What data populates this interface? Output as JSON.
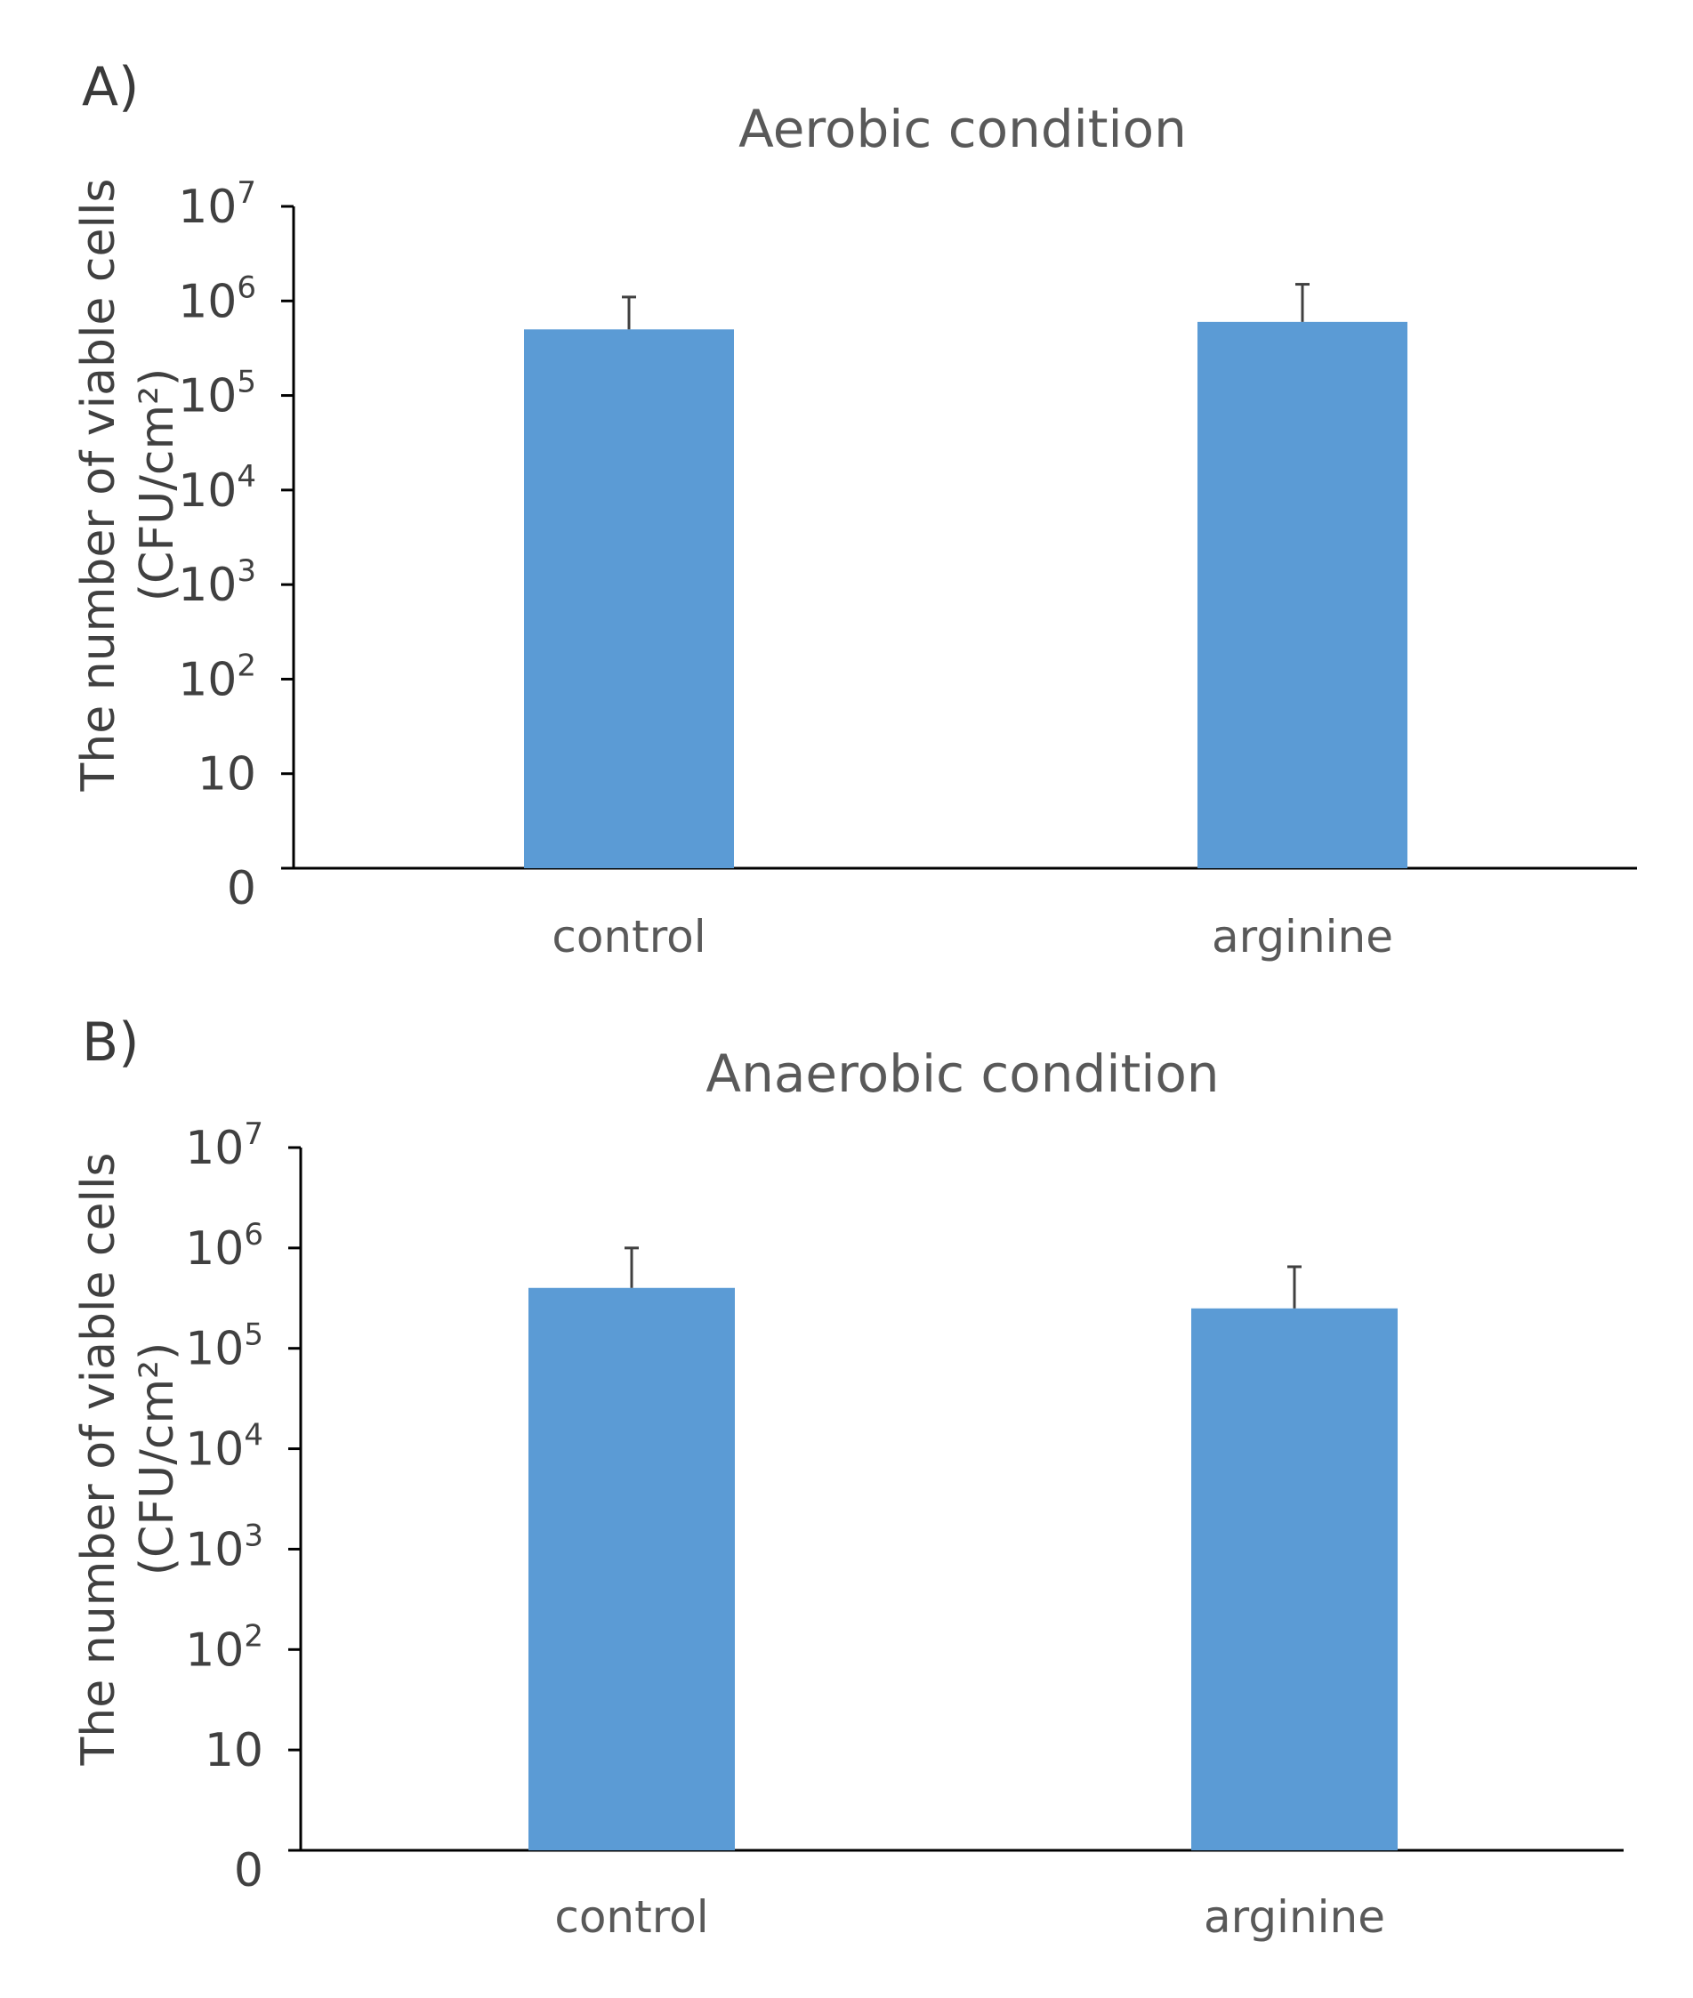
{
  "figure": {
    "panels": [
      "A)",
      "B)"
    ]
  },
  "colors": {
    "bar": "#5b9bd5",
    "axis": "#000000",
    "errorbar": "#404040"
  },
  "chart_data": [
    {
      "type": "bar",
      "panel": "A)",
      "title": "Aerobic condition",
      "xlabel": "",
      "ylabel": "The number of viable cells",
      "ylabel_unit": "(CFU/cm²)",
      "yscale": "log",
      "ylim": [
        1,
        10000000
      ],
      "yticks": [
        {
          "value": 1,
          "base": "0",
          "exp": ""
        },
        {
          "value": 10,
          "base": "10",
          "exp": ""
        },
        {
          "value": 100,
          "base": "10",
          "exp": "2"
        },
        {
          "value": 1000,
          "base": "10",
          "exp": "3"
        },
        {
          "value": 10000,
          "base": "10",
          "exp": "4"
        },
        {
          "value": 100000,
          "base": "10",
          "exp": "5"
        },
        {
          "value": 1000000,
          "base": "10",
          "exp": "6"
        },
        {
          "value": 10000000,
          "base": "10",
          "exp": "7"
        }
      ],
      "categories": [
        "control",
        "arginine"
      ],
      "values": [
        500000,
        600000
      ],
      "error_upper": [
        1100000,
        1500000
      ],
      "legend": null,
      "grid": false
    },
    {
      "type": "bar",
      "panel": "B)",
      "title": "Anaerobic condition",
      "xlabel": "",
      "ylabel": "The number of viable cells",
      "ylabel_unit": "(CFU/cm²)",
      "yscale": "log",
      "ylim": [
        1,
        10000000
      ],
      "yticks": [
        {
          "value": 1,
          "base": "0",
          "exp": ""
        },
        {
          "value": 10,
          "base": "10",
          "exp": ""
        },
        {
          "value": 100,
          "base": "10",
          "exp": "2"
        },
        {
          "value": 1000,
          "base": "10",
          "exp": "3"
        },
        {
          "value": 10000,
          "base": "10",
          "exp": "4"
        },
        {
          "value": 100000,
          "base": "10",
          "exp": "5"
        },
        {
          "value": 1000000,
          "base": "10",
          "exp": "6"
        },
        {
          "value": 10000000,
          "base": "10",
          "exp": "7"
        }
      ],
      "categories": [
        "control",
        "arginine"
      ],
      "values": [
        400000,
        250000
      ],
      "error_upper": [
        1000000,
        650000
      ],
      "legend": null,
      "grid": false
    }
  ]
}
